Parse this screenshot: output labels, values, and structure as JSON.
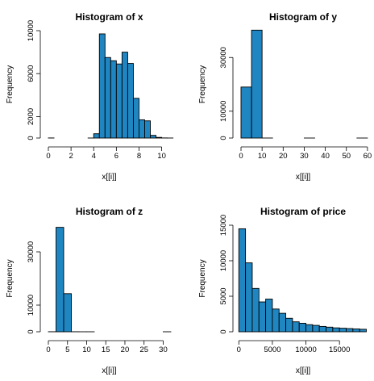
{
  "chart_data": [
    {
      "type": "bar",
      "title": "Histogram of x",
      "xlabel": "x[[i]]",
      "ylabel": "Frequency",
      "bar_color": "#1f86c2",
      "xlim": [
        0,
        10.74
      ],
      "ylim": [
        0,
        10000
      ],
      "x_ticks": [
        "0",
        "2",
        "4",
        "6",
        "8",
        "10"
      ],
      "y_ticks": [
        "0",
        "2000",
        "6000",
        "10000"
      ],
      "bin_edges": [
        0,
        0.5,
        1,
        1.5,
        2,
        2.5,
        3,
        3.5,
        4,
        4.5,
        5,
        5.5,
        6,
        6.5,
        7,
        7.5,
        8,
        8.5,
        9,
        9.5,
        10,
        10.5,
        11
      ],
      "values": [
        8,
        0,
        0,
        0,
        0,
        0,
        0,
        3,
        400,
        9700,
        7500,
        7200,
        6900,
        8000,
        6950,
        3700,
        1700,
        1600,
        250,
        60,
        10,
        3
      ]
    },
    {
      "type": "bar",
      "title": "Histogram of y",
      "xlabel": "x[[i]]",
      "ylabel": "Frequency",
      "bar_color": "#1f86c2",
      "xlim": [
        0,
        58.9
      ],
      "ylim": [
        0,
        40000
      ],
      "x_ticks": [
        "0",
        "10",
        "20",
        "30",
        "40",
        "50",
        "60"
      ],
      "y_ticks": [
        "0",
        "10000",
        "30000"
      ],
      "bin_edges": [
        0,
        5,
        10,
        15,
        20,
        25,
        30,
        35,
        40,
        45,
        50,
        55,
        60
      ],
      "values": [
        19000,
        40200,
        6,
        0,
        0,
        0,
        1,
        0,
        0,
        0,
        0,
        1
      ]
    },
    {
      "type": "bar",
      "title": "Histogram of z",
      "xlabel": "x[[i]]",
      "ylabel": "Frequency",
      "bar_color": "#1f86c2",
      "xlim": [
        0,
        31.8
      ],
      "ylim": [
        0,
        40000
      ],
      "x_ticks": [
        "0",
        "5",
        "10",
        "15",
        "20",
        "25",
        "30"
      ],
      "y_ticks": [
        "0",
        "10000",
        "30000"
      ],
      "bin_edges": [
        0,
        2,
        4,
        6,
        8,
        10,
        12,
        14,
        16,
        18,
        20,
        22,
        24,
        26,
        28,
        30,
        32
      ],
      "values": [
        20,
        39200,
        14300,
        20,
        3,
        1,
        0,
        0,
        0,
        0,
        0,
        0,
        0,
        0,
        0,
        1
      ]
    },
    {
      "type": "bar",
      "title": "Histogram of price",
      "xlabel": "x[[i]]",
      "ylabel": "Frequency",
      "bar_color": "#1f86c2",
      "xlim": [
        326,
        18823
      ],
      "ylim": [
        0,
        15000
      ],
      "x_ticks": [
        "0",
        "5000",
        "10000",
        "15000"
      ],
      "y_ticks": [
        "0",
        "5000",
        "10000",
        "15000"
      ],
      "bin_edges": [
        0,
        1000,
        2000,
        3000,
        4000,
        5000,
        6000,
        7000,
        8000,
        9000,
        10000,
        11000,
        12000,
        13000,
        14000,
        15000,
        16000,
        17000,
        18000,
        19000
      ],
      "values": [
        14500,
        9700,
        6100,
        4200,
        4600,
        3200,
        2600,
        1900,
        1400,
        1200,
        1000,
        900,
        750,
        650,
        550,
        500,
        450,
        400,
        350
      ]
    }
  ]
}
